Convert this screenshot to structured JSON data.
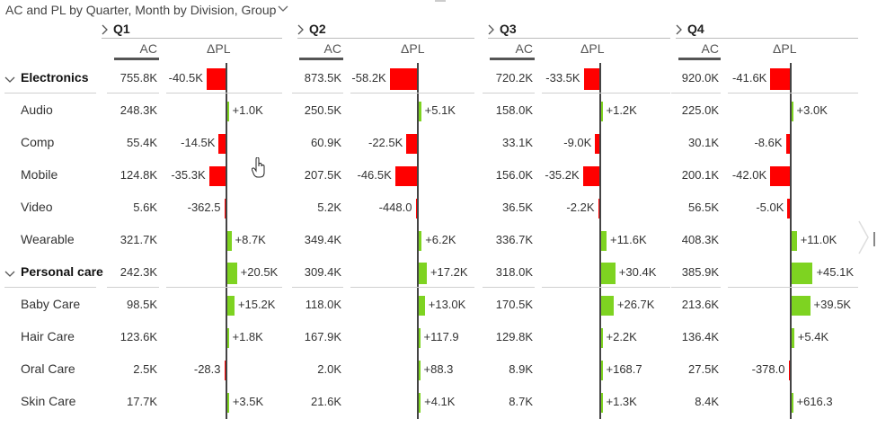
{
  "title": "AC and PL by Quarter, Month by Division, Group",
  "quarters": [
    "Q1",
    "Q2",
    "Q3",
    "Q4"
  ],
  "col_ac": "AC",
  "col_dpl": "ΔPL",
  "colors": {
    "negative": "#ff0000",
    "positive": "#7ed321",
    "axis": "#444444"
  },
  "rows": [
    {
      "label": "Electronics",
      "group": true,
      "ac": [
        "755.8K",
        "873.5K",
        "720.2K",
        "920.0K"
      ],
      "dpl": [
        "-40.5K",
        "-58.2K",
        "-33.5K",
        "-41.6K"
      ],
      "dplv": [
        -40.5,
        -58.2,
        -33.5,
        -41.6
      ]
    },
    {
      "label": "Audio",
      "group": false,
      "ac": [
        "248.3K",
        "250.5K",
        "158.0K",
        "225.0K"
      ],
      "dpl": [
        "+1.0K",
        "+5.1K",
        "+1.2K",
        "+3.0K"
      ],
      "dplv": [
        1.0,
        5.1,
        1.2,
        3.0
      ]
    },
    {
      "label": "Comp",
      "group": false,
      "ac": [
        "55.4K",
        "60.9K",
        "33.1K",
        "30.1K"
      ],
      "dpl": [
        "-14.5K",
        "-22.5K",
        "-9.0K",
        "-8.6K"
      ],
      "dplv": [
        -14.5,
        -22.5,
        -9.0,
        -8.6
      ]
    },
    {
      "label": "Mobile",
      "group": false,
      "ac": [
        "124.8K",
        "207.5K",
        "156.0K",
        "200.1K"
      ],
      "dpl": [
        "-35.3K",
        "-46.5K",
        "-35.2K",
        "-42.0K"
      ],
      "dplv": [
        -35.3,
        -46.5,
        -35.2,
        -42.0
      ]
    },
    {
      "label": "Video",
      "group": false,
      "ac": [
        "5.6K",
        "5.2K",
        "36.5K",
        "56.5K"
      ],
      "dpl": [
        "-362.5",
        "-448.0",
        "-2.2K",
        "-5.0K"
      ],
      "dplv": [
        -0.3625,
        -0.448,
        -2.2,
        -5.0
      ]
    },
    {
      "label": "Wearable",
      "group": false,
      "ac": [
        "321.7K",
        "349.4K",
        "336.7K",
        "408.3K"
      ],
      "dpl": [
        "+8.7K",
        "+6.2K",
        "+11.6K",
        "+11.0K"
      ],
      "dplv": [
        8.7,
        6.2,
        11.6,
        11.0
      ]
    },
    {
      "label": "Personal care",
      "group": true,
      "ac": [
        "242.3K",
        "309.4K",
        "318.0K",
        "385.9K"
      ],
      "dpl": [
        "+20.5K",
        "+17.2K",
        "+30.4K",
        "+45.1K"
      ],
      "dplv": [
        20.5,
        17.2,
        30.4,
        45.1
      ]
    },
    {
      "label": "Baby Care",
      "group": false,
      "ac": [
        "98.5K",
        "118.0K",
        "170.5K",
        "213.6K"
      ],
      "dpl": [
        "+15.2K",
        "+13.0K",
        "+26.7K",
        "+39.5K"
      ],
      "dplv": [
        15.2,
        13.0,
        26.7,
        39.5
      ]
    },
    {
      "label": "Hair Care",
      "group": false,
      "ac": [
        "123.6K",
        "167.9K",
        "129.8K",
        "136.4K"
      ],
      "dpl": [
        "+1.8K",
        "+117.9",
        "+2.2K",
        "+5.4K"
      ],
      "dplv": [
        1.8,
        0.1179,
        2.2,
        5.4
      ]
    },
    {
      "label": "Oral Care",
      "group": false,
      "ac": [
        "2.5K",
        "2.0K",
        "8.9K",
        "27.5K"
      ],
      "dpl": [
        "-28.3",
        "+88.3",
        "+168.7",
        "-378.0"
      ],
      "dplv": [
        -0.0283,
        0.0883,
        0.1687,
        -0.378
      ]
    },
    {
      "label": "Skin Care",
      "group": false,
      "ac": [
        "17.7K",
        "21.6K",
        "8.7K",
        "8.4K"
      ],
      "dpl": [
        "+3.5K",
        "+4.1K",
        "+1.3K",
        "+616.3"
      ],
      "dplv": [
        3.5,
        4.1,
        1.3,
        0.6163
      ]
    }
  ],
  "icons": {
    "title_dropdown": "chevron-down-icon",
    "quarter_expand": "chevron-right-icon",
    "group_collapse": "chevron-down-icon",
    "next_page": "chevron-right-icon",
    "cursor": "hand-cursor-icon"
  }
}
